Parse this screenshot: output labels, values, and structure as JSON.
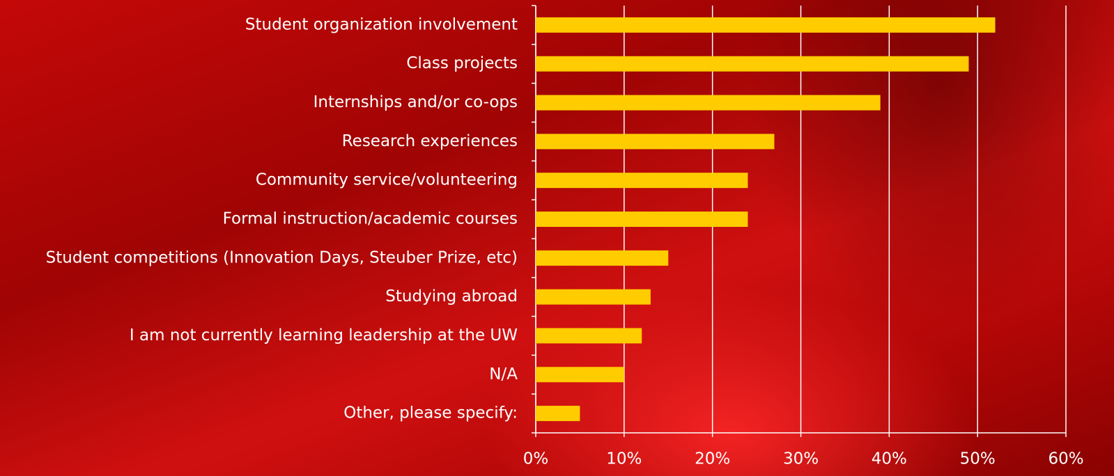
{
  "chart_data": {
    "type": "barh",
    "categories": [
      "Student organization involvement",
      "Class projects",
      "Internships and/or co-ops",
      "Research experiences",
      "Community service/volunteering",
      "Formal instruction/academic courses",
      "Student competitions (Innovation Days, Steuber Prize, etc)",
      "Studying abroad",
      "I am not currently learning leadership at the UW",
      "N/A",
      "Other, please specify:"
    ],
    "values": [
      52,
      49,
      39,
      27,
      24,
      24,
      15,
      13,
      12,
      10,
      5
    ],
    "color": "#ffcc00",
    "xlim": [
      0,
      60
    ],
    "xticks": [
      {
        "value": 0,
        "label": "0%"
      },
      {
        "value": 10,
        "label": "10%"
      },
      {
        "value": 20,
        "label": "20%"
      },
      {
        "value": 30,
        "label": "30%"
      },
      {
        "value": 40,
        "label": "40%"
      },
      {
        "value": 50,
        "label": "50%"
      },
      {
        "value": 60,
        "label": "60%"
      }
    ],
    "grid": true
  }
}
